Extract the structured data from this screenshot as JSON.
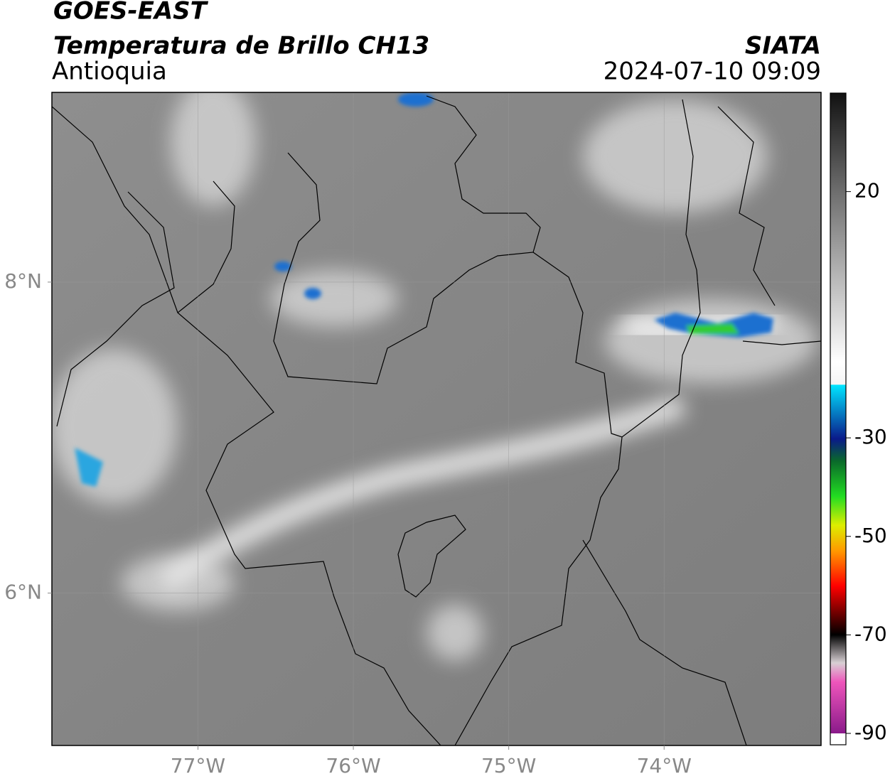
{
  "chart_data": {
    "type": "map",
    "title": "GOES-EAST",
    "subtitle": "Temperatura de Brillo CH13",
    "region": "Antioquia",
    "source": "SIATA",
    "timestamp": "2024-07-10 09:09",
    "xlim": [
      -77.94,
      -72.99
    ],
    "ylim": [
      5.02,
      9.22
    ],
    "xticks": [
      {
        "value": -77,
        "label": "77°W"
      },
      {
        "value": -76,
        "label": "76°W"
      },
      {
        "value": -75,
        "label": "75°W"
      },
      {
        "value": -74,
        "label": "74°W"
      }
    ],
    "yticks": [
      {
        "value": 6,
        "label": "6°N"
      },
      {
        "value": 8,
        "label": "8°N"
      }
    ],
    "grid": true,
    "colorbar": {
      "clim": [
        -90,
        40
      ],
      "ticks": [
        20,
        -30,
        -50,
        -70,
        -90
      ]
    }
  }
}
